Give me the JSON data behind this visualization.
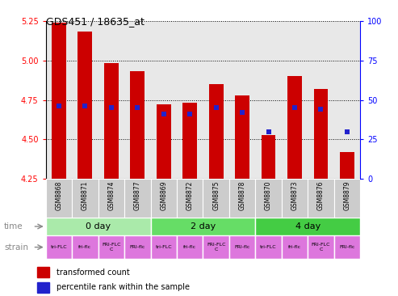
{
  "title": "GDS451 / 18635_at",
  "samples": [
    "GSM8868",
    "GSM8871",
    "GSM8874",
    "GSM8877",
    "GSM8869",
    "GSM8872",
    "GSM8875",
    "GSM8878",
    "GSM8870",
    "GSM8873",
    "GSM8876",
    "GSM8879"
  ],
  "transformed_count": [
    5.24,
    5.18,
    4.98,
    4.93,
    4.72,
    4.73,
    4.85,
    4.78,
    4.53,
    4.9,
    4.82,
    4.42
  ],
  "percentile_rank": [
    46,
    46,
    45,
    45,
    41,
    41,
    45,
    42,
    30,
    45,
    44,
    30
  ],
  "ymin": 4.25,
  "ymax": 5.25,
  "yticks": [
    4.25,
    4.5,
    4.75,
    5.0,
    5.25
  ],
  "y2ticks": [
    0,
    25,
    50,
    75,
    100
  ],
  "bar_color": "#cc0000",
  "dot_color": "#2222cc",
  "time_groups": [
    {
      "label": "0 day",
      "start": 0,
      "end": 4,
      "color": "#aaeaaa"
    },
    {
      "label": "2 day",
      "start": 4,
      "end": 8,
      "color": "#66dd66"
    },
    {
      "label": "4 day",
      "start": 8,
      "end": 12,
      "color": "#44cc44"
    }
  ],
  "strain_labels": [
    "tri-FLC",
    "fri-flc",
    "FRI-FLC\nC",
    "FRI-flc",
    "tri-FLC",
    "fri-flc",
    "FRI-FLC\nC",
    "FRI-flc",
    "tri-FLC",
    "fri-flc",
    "FRI-FLC\nC",
    "FRI-flc"
  ],
  "strain_color": "#dd77dd",
  "bg_color": "#ffffff",
  "plot_bg_color": "#e8e8e8"
}
